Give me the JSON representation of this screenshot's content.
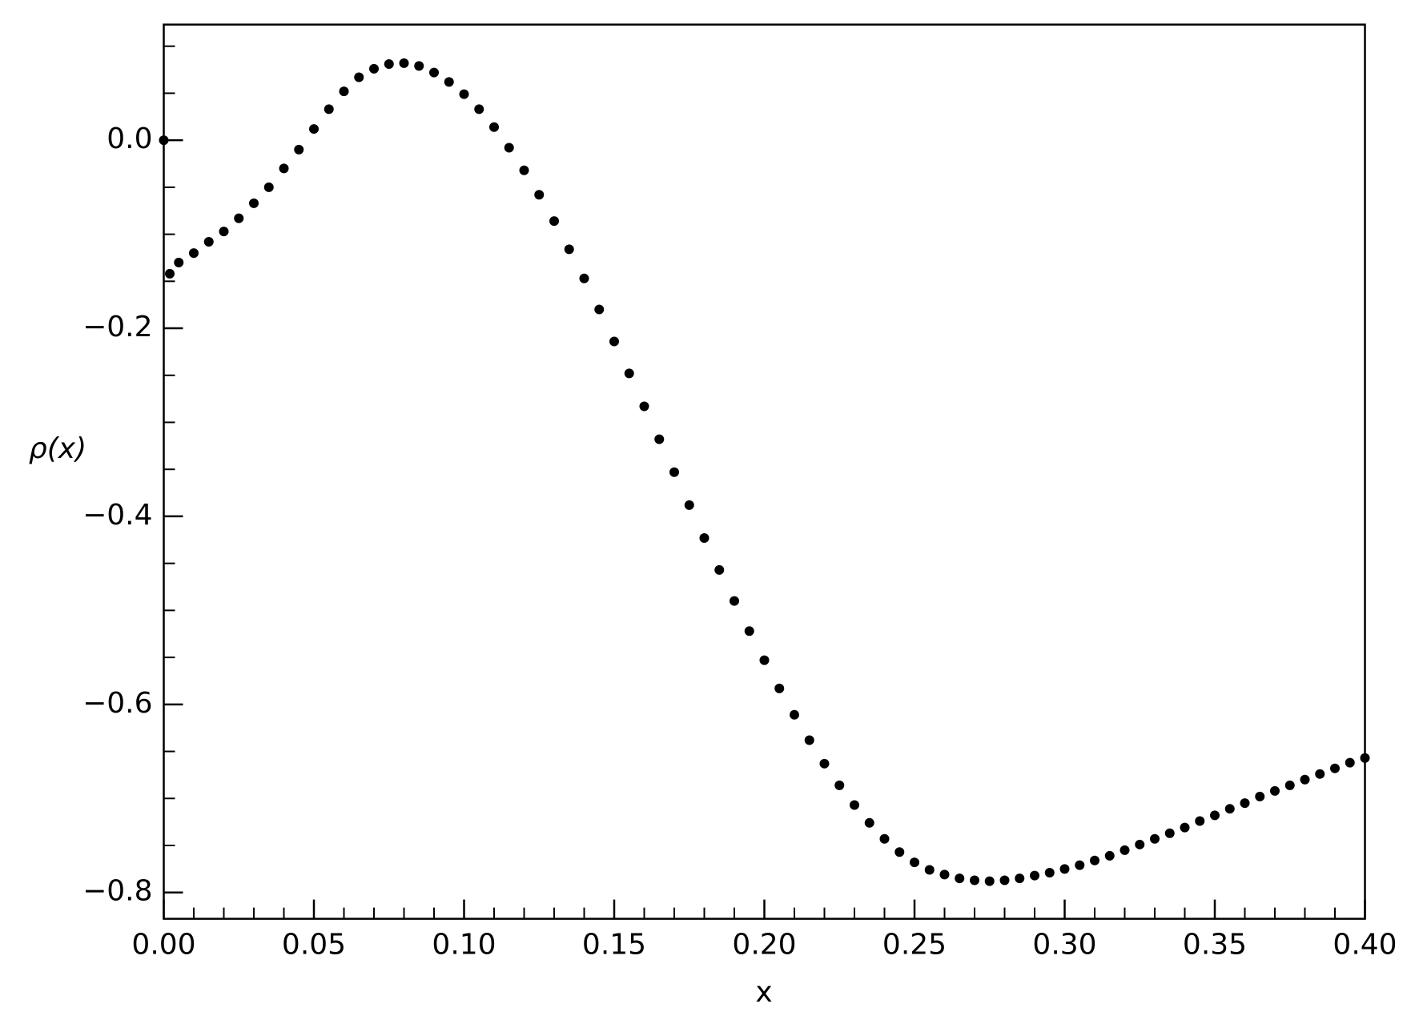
{
  "chart_data": {
    "type": "scatter",
    "xlabel": "x",
    "ylabel": "ρ(x)",
    "color": "#000000",
    "xlim": [
      0,
      0.4
    ],
    "ylim": [
      -0.828,
      0.123
    ],
    "xticks": [
      {
        "value": 0,
        "label": "0.00"
      },
      {
        "value": 0.05,
        "label": "0.05"
      },
      {
        "value": 0.1,
        "label": "0.10"
      },
      {
        "value": 0.15,
        "label": "0.15"
      },
      {
        "value": 0.2,
        "label": "0.20"
      },
      {
        "value": 0.25,
        "label": "0.25"
      },
      {
        "value": 0.3,
        "label": "0.30"
      },
      {
        "value": 0.35,
        "label": "0.35"
      },
      {
        "value": 0.4,
        "label": "0.40"
      }
    ],
    "yticks": [
      {
        "value": -0.8,
        "label": "−0.8"
      },
      {
        "value": -0.6,
        "label": "−0.6"
      },
      {
        "value": -0.4,
        "label": "−0.4"
      },
      {
        "value": -0.2,
        "label": "−0.2"
      },
      {
        "value": 0,
        "label": "0.0"
      }
    ],
    "xminorticks": [
      0.01,
      0.02,
      0.03,
      0.04,
      0.06,
      0.07,
      0.08,
      0.09,
      0.11,
      0.12,
      0.13,
      0.14,
      0.16,
      0.17,
      0.18,
      0.19,
      0.21,
      0.22,
      0.23,
      0.24,
      0.26,
      0.27,
      0.28,
      0.29,
      0.31,
      0.32,
      0.33,
      0.34,
      0.36,
      0.37,
      0.38,
      0.39
    ],
    "yminorticks": [
      -0.75,
      -0.7,
      -0.65,
      -0.55,
      -0.5,
      -0.45,
      -0.35,
      -0.3,
      -0.25,
      -0.15,
      -0.1,
      -0.05,
      0.05,
      0.1
    ],
    "x": [
      0,
      0.002,
      0.005,
      0.01,
      0.015,
      0.02,
      0.025,
      0.03,
      0.035,
      0.04,
      0.045,
      0.05,
      0.055,
      0.06,
      0.065,
      0.07,
      0.075,
      0.08,
      0.085,
      0.09,
      0.095,
      0.1,
      0.105,
      0.11,
      0.115,
      0.12,
      0.125,
      0.13,
      0.135,
      0.14,
      0.145,
      0.15,
      0.155,
      0.16,
      0.165,
      0.17,
      0.175,
      0.18,
      0.185,
      0.19,
      0.195,
      0.2,
      0.205,
      0.21,
      0.215,
      0.22,
      0.225,
      0.23,
      0.235,
      0.24,
      0.245,
      0.25,
      0.255,
      0.26,
      0.265,
      0.27,
      0.275,
      0.28,
      0.285,
      0.29,
      0.295,
      0.3,
      0.305,
      0.31,
      0.315,
      0.32,
      0.325,
      0.33,
      0.335,
      0.34,
      0.345,
      0.35,
      0.355,
      0.36,
      0.365,
      0.37,
      0.375,
      0.38,
      0.385,
      0.39,
      0.395,
      0.4
    ],
    "values": [
      0,
      -0.142,
      -0.13,
      -0.12,
      -0.108,
      -0.097,
      -0.083,
      -0.067,
      -0.05,
      -0.03,
      -0.01,
      0.012,
      0.033,
      0.052,
      0.067,
      0.076,
      0.081,
      0.082,
      0.079,
      0.072,
      0.062,
      0.049,
      0.033,
      0.014,
      -0.008,
      -0.032,
      -0.058,
      -0.086,
      -0.116,
      -0.147,
      -0.18,
      -0.214,
      -0.248,
      -0.283,
      -0.318,
      -0.353,
      -0.388,
      -0.423,
      -0.457,
      -0.49,
      -0.522,
      -0.553,
      -0.583,
      -0.611,
      -0.638,
      -0.663,
      -0.686,
      -0.707,
      -0.726,
      -0.743,
      -0.757,
      -0.768,
      -0.776,
      -0.781,
      -0.785,
      -0.787,
      -0.788,
      -0.787,
      -0.785,
      -0.782,
      -0.779,
      -0.775,
      -0.771,
      -0.766,
      -0.761,
      -0.755,
      -0.749,
      -0.743,
      -0.737,
      -0.731,
      -0.724,
      -0.718,
      -0.711,
      -0.705,
      -0.698,
      -0.692,
      -0.686,
      -0.68,
      -0.674,
      -0.668,
      -0.662,
      -0.657
    ]
  }
}
